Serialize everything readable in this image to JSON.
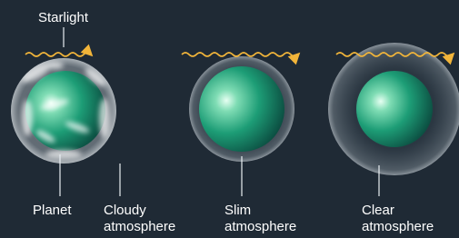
{
  "labels": {
    "starlight": "Starlight",
    "planet": "Planet",
    "cloudy": [
      "Cloudy",
      "atmosphere"
    ],
    "slim": [
      "Slim",
      "atmosphere"
    ],
    "clear": [
      "Clear",
      "atmosphere"
    ]
  }
}
